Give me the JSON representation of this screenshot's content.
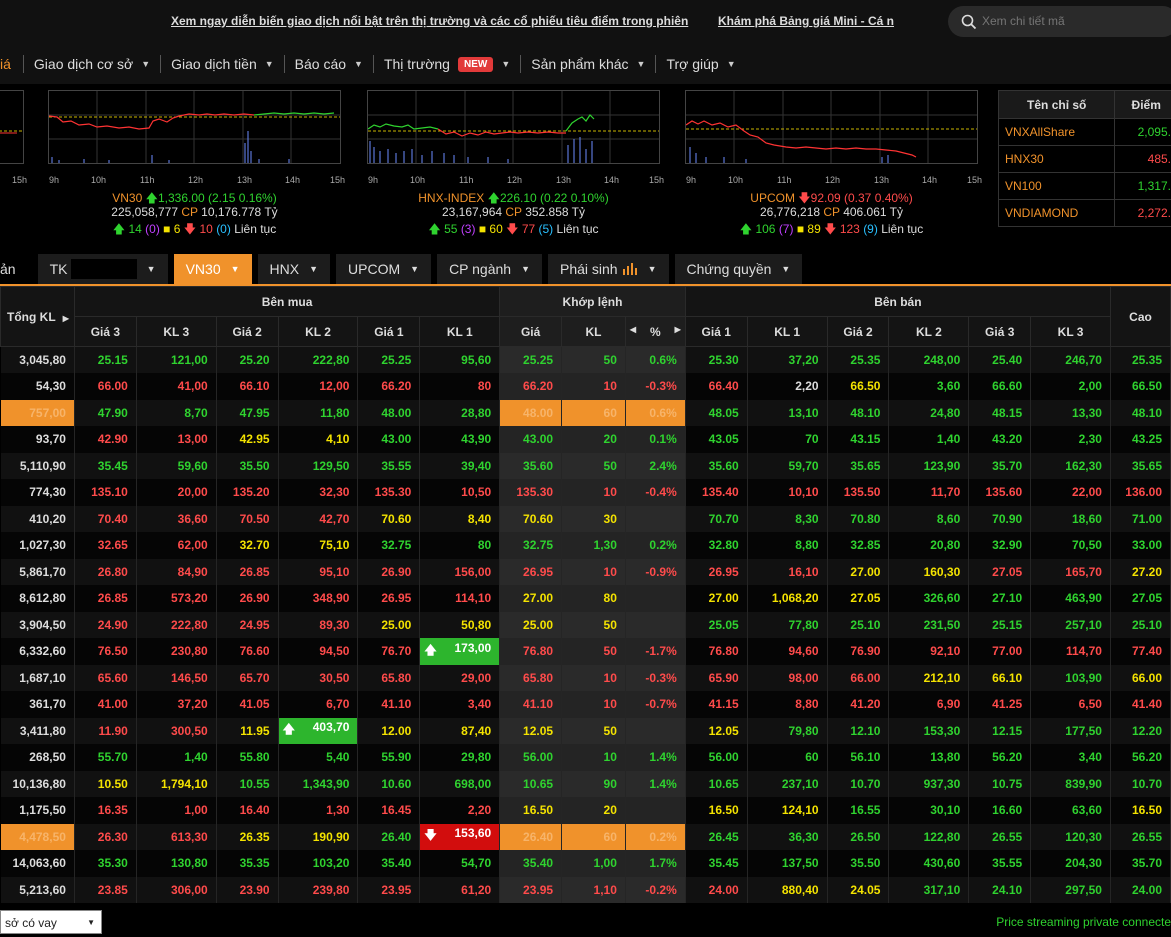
{
  "ticker": {
    "link1": "Xem ngay diễn biến giao dịch nổi bật trên thị trường và các cổ phiếu tiêu điểm trong phiên",
    "link2": "Khám phá Bảng giá Mini - Cá n"
  },
  "search": {
    "placeholder": "Xem chi tiết mã"
  },
  "nav": {
    "cut": "iá",
    "items": [
      "Giao dịch cơ sở",
      "Giao dịch tiền",
      "Báo cáo",
      "Thị trường",
      "Sản phẩm khác",
      "Trợ giúp"
    ],
    "badge": "NEW"
  },
  "charts": {
    "hours": [
      "9h",
      "10h",
      "11h",
      "12h",
      "13h",
      "14h",
      "15h"
    ],
    "leftcut": "15h",
    "vn30": {
      "name": "VN30",
      "value": "1,336.00 (2.15 0.16%)",
      "vol": "225,058,777",
      "cp": "CP",
      "val": "10,176.778 Tỷ",
      "up": "14",
      "ce": "(0)",
      "ref": "6",
      "down": "10",
      "fl": "(0)",
      "state": "Liên tục"
    },
    "hnx": {
      "name": "HNX-INDEX",
      "value": "226.10 (0.22 0.10%)",
      "vol": "23,167,964",
      "cp": "CP",
      "val": "352.858 Tỷ",
      "up": "55",
      "ce": "(3)",
      "ref": "60",
      "down": "77",
      "fl": "(5)",
      "state": "Liên tục"
    },
    "upcom": {
      "name": "UPCOM",
      "value": "92.09 (0.37 0.40%)",
      "vol": "26,776,218",
      "cp": "CP",
      "val": "406.061 Tỷ",
      "up": "106",
      "ce": "(7)",
      "ref": "89",
      "down": "123",
      "fl": "(9)",
      "state": "Liên tục"
    }
  },
  "indexTable": {
    "h1": "Tên chỉ số",
    "h2": "Điểm",
    "rows": [
      {
        "name": "VNXAllShare",
        "pt": "2,095.",
        "c": "#2fd32f"
      },
      {
        "name": "HNX30",
        "pt": "485.",
        "c": "#ff4b4b"
      },
      {
        "name": "VN100",
        "pt": "1,317.",
        "c": "#2fd32f"
      },
      {
        "name": "VNDIAMOND",
        "pt": "2,272.",
        "c": "#ff4b4b"
      }
    ]
  },
  "tabs": {
    "cut": "ản",
    "tk": "TK",
    "vn30": "VN30",
    "hnx": "HNX",
    "upcom": "UPCOM",
    "cpn": "CP ngành",
    "ps": "Phái sinh",
    "cq": "Chứng quyền"
  },
  "board": {
    "groups": {
      "buy": "Bên mua",
      "match": "Khớp lệnh",
      "sell": "Bên bán"
    },
    "cols": {
      "total": "Tổng KL",
      "g3": "Giá 3",
      "kl3": "KL 3",
      "g2": "Giá 2",
      "kl2": "KL 2",
      "g1": "Giá 1",
      "kl1": "KL 1",
      "price": "Giá",
      "kl": "KL",
      "pct": "%",
      "sg1": "Giá 1",
      "skl1": "KL 1",
      "sg2": "Giá 2",
      "skl2": "KL 2",
      "sg3": "Giá 3",
      "skl3": "KL 3",
      "high": "Cao"
    },
    "rows": [
      [
        "3,045,80",
        "25.15",
        "121,00",
        "25.20",
        "222,80",
        "25.25",
        "95,60",
        "25.25",
        "50",
        "0.6%",
        "25.30",
        "37,20",
        "25.35",
        "248,00",
        "25.40",
        "246,70",
        "25.35",
        "uuuuuuuuuuuuuuuu"
      ],
      [
        "54,30",
        "66.00",
        "41,00",
        "66.10",
        "12,00",
        "66.20",
        "80",
        "66.20",
        "10",
        "-0.3%",
        "66.40",
        "2,20",
        "66.50",
        "3,60",
        "66.60",
        "2,00",
        "66.50",
        "ddddddddddryuuuu"
      ],
      [
        "757,00",
        "47.90",
        "8,70",
        "47.95",
        "11,80",
        "48.00",
        "28,80",
        "48.00",
        "60",
        "0.6%",
        "48.05",
        "13,10",
        "48.10",
        "24,80",
        "48.15",
        "13,30",
        "48.10",
        "uuuuuuuuuuuuuuuu"
      ],
      [
        "93,70",
        "42.90",
        "13,00",
        "42.95",
        "4,10",
        "43.00",
        "43,90",
        "43.00",
        "20",
        "0.1%",
        "43.05",
        "70",
        "43.15",
        "1,40",
        "43.20",
        "2,30",
        "43.25",
        "ddyyuuuuuuuuuuuu"
      ],
      [
        "5,110,90",
        "35.45",
        "59,60",
        "35.50",
        "129,50",
        "35.55",
        "39,40",
        "35.60",
        "50",
        "2.4%",
        "35.60",
        "59,70",
        "35.65",
        "123,90",
        "35.70",
        "162,30",
        "35.65",
        "uuuuuuuuuuuuuuuu"
      ],
      [
        "774,30",
        "135.10",
        "20,00",
        "135.20",
        "32,30",
        "135.30",
        "10,50",
        "135.30",
        "10",
        "-0.4%",
        "135.40",
        "10,10",
        "135.50",
        "11,70",
        "135.60",
        "22,00",
        "136.00",
        "dddddddddddddddd"
      ],
      [
        "410,20",
        "70.40",
        "36,60",
        "70.50",
        "42,70",
        "70.60",
        "8,40",
        "70.60",
        "30",
        "",
        "70.70",
        "8,30",
        "70.80",
        "8,60",
        "70.90",
        "18,60",
        "71.00",
        "ddddyyyyyuuuuuuu"
      ],
      [
        "1,027,30",
        "32.65",
        "62,00",
        "32.70",
        "75,10",
        "32.75",
        "80",
        "32.75",
        "1,30",
        "0.2%",
        "32.80",
        "8,80",
        "32.85",
        "20,80",
        "32.90",
        "70,50",
        "33.00",
        "ddyyuuuuuuuuuuuu"
      ],
      [
        "5,861,70",
        "26.80",
        "84,90",
        "26.85",
        "95,10",
        "26.90",
        "156,00",
        "26.95",
        "10",
        "-0.9%",
        "26.95",
        "16,10",
        "27.00",
        "160,30",
        "27.05",
        "165,70",
        "27.20",
        "dddddddddddyyddy"
      ],
      [
        "8,612,80",
        "26.85",
        "573,20",
        "26.90",
        "348,90",
        "26.95",
        "114,10",
        "27.00",
        "80",
        "",
        "27.00",
        "1,068,20",
        "27.05",
        "326,60",
        "27.10",
        "463,90",
        "27.05",
        "ddddddyyyyyyuuuu"
      ],
      [
        "3,904,50",
        "24.90",
        "222,80",
        "24.95",
        "89,30",
        "25.00",
        "50,80",
        "25.00",
        "50",
        "",
        "25.05",
        "77,80",
        "25.10",
        "231,50",
        "25.15",
        "257,10",
        "25.10",
        "ddddyyyyyuuuuuuu"
      ],
      [
        "6,332,60",
        "76.50",
        "230,80",
        "76.60",
        "94,50",
        "76.70",
        "173,00",
        "76.80",
        "50",
        "-1.7%",
        "76.80",
        "94,60",
        "76.90",
        "92,10",
        "77.00",
        "114,70",
        "77.40",
        "dddddddddddddddd"
      ],
      [
        "1,687,10",
        "65.60",
        "146,50",
        "65.70",
        "30,50",
        "65.80",
        "29,00",
        "65.80",
        "10",
        "-0.3%",
        "65.90",
        "98,00",
        "66.00",
        "212,10",
        "66.10",
        "103,90",
        "66.00",
        "ddddddddddddyyuy"
      ],
      [
        "361,70",
        "41.00",
        "37,20",
        "41.05",
        "6,70",
        "41.10",
        "3,40",
        "41.10",
        "10",
        "-0.7%",
        "41.15",
        "8,80",
        "41.20",
        "6,90",
        "41.25",
        "6,50",
        "41.40",
        "dddddddddddddddd"
      ],
      [
        "3,411,80",
        "11.90",
        "300,50",
        "11.95",
        "403,70",
        "12.00",
        "87,40",
        "12.05",
        "50",
        "",
        "12.05",
        "79,80",
        "12.10",
        "153,30",
        "12.15",
        "177,50",
        "12.20",
        "ddyyyyyyyyuuuuuu"
      ],
      [
        "268,50",
        "55.70",
        "1,40",
        "55.80",
        "5,40",
        "55.90",
        "29,80",
        "56.00",
        "10",
        "1.4%",
        "56.00",
        "60",
        "56.10",
        "13,80",
        "56.20",
        "3,40",
        "56.20",
        "uuuuuuuuuuuuuuuu"
      ],
      [
        "10,136,80",
        "10.50",
        "1,794,10",
        "10.55",
        "1,343,90",
        "10.60",
        "698,00",
        "10.65",
        "90",
        "1.4%",
        "10.65",
        "237,10",
        "10.70",
        "937,30",
        "10.75",
        "839,90",
        "10.70",
        "yyuuuuuuuuuuuuuu"
      ],
      [
        "1,175,50",
        "16.35",
        "1,00",
        "16.40",
        "1,30",
        "16.45",
        "2,20",
        "16.50",
        "20",
        "",
        "16.50",
        "124,10",
        "16.55",
        "30,10",
        "16.60",
        "63,60",
        "16.50",
        "ddddddyyyyyuuuuy"
      ],
      [
        "4,478,50",
        "26.30",
        "613,30",
        "26.35",
        "190,90",
        "26.40",
        "153,60",
        "26.40",
        "60",
        "0.2%",
        "26.45",
        "36,30",
        "26.50",
        "122,80",
        "26.55",
        "120,30",
        "26.55",
        "ddyyuuuuuuuuuuuu"
      ],
      [
        "14,063,60",
        "35.30",
        "130,80",
        "35.35",
        "103,20",
        "35.40",
        "54,70",
        "35.40",
        "1,00",
        "1.7%",
        "35.45",
        "137,50",
        "35.50",
        "430,60",
        "35.55",
        "204,30",
        "35.70",
        "uuuuuuuuuuuuuuuu"
      ],
      [
        "5,213,60",
        "23.85",
        "306,00",
        "23.90",
        "239,80",
        "23.95",
        "61,20",
        "23.95",
        "1,10",
        "-0.2%",
        "24.00",
        "880,40",
        "24.05",
        "317,10",
        "24.10",
        "297,50",
        "24.00",
        "ddddddddddyyuuuu"
      ]
    ]
  },
  "footer": {
    "select": "sở có vay",
    "status": "Price streaming private connecte"
  }
}
